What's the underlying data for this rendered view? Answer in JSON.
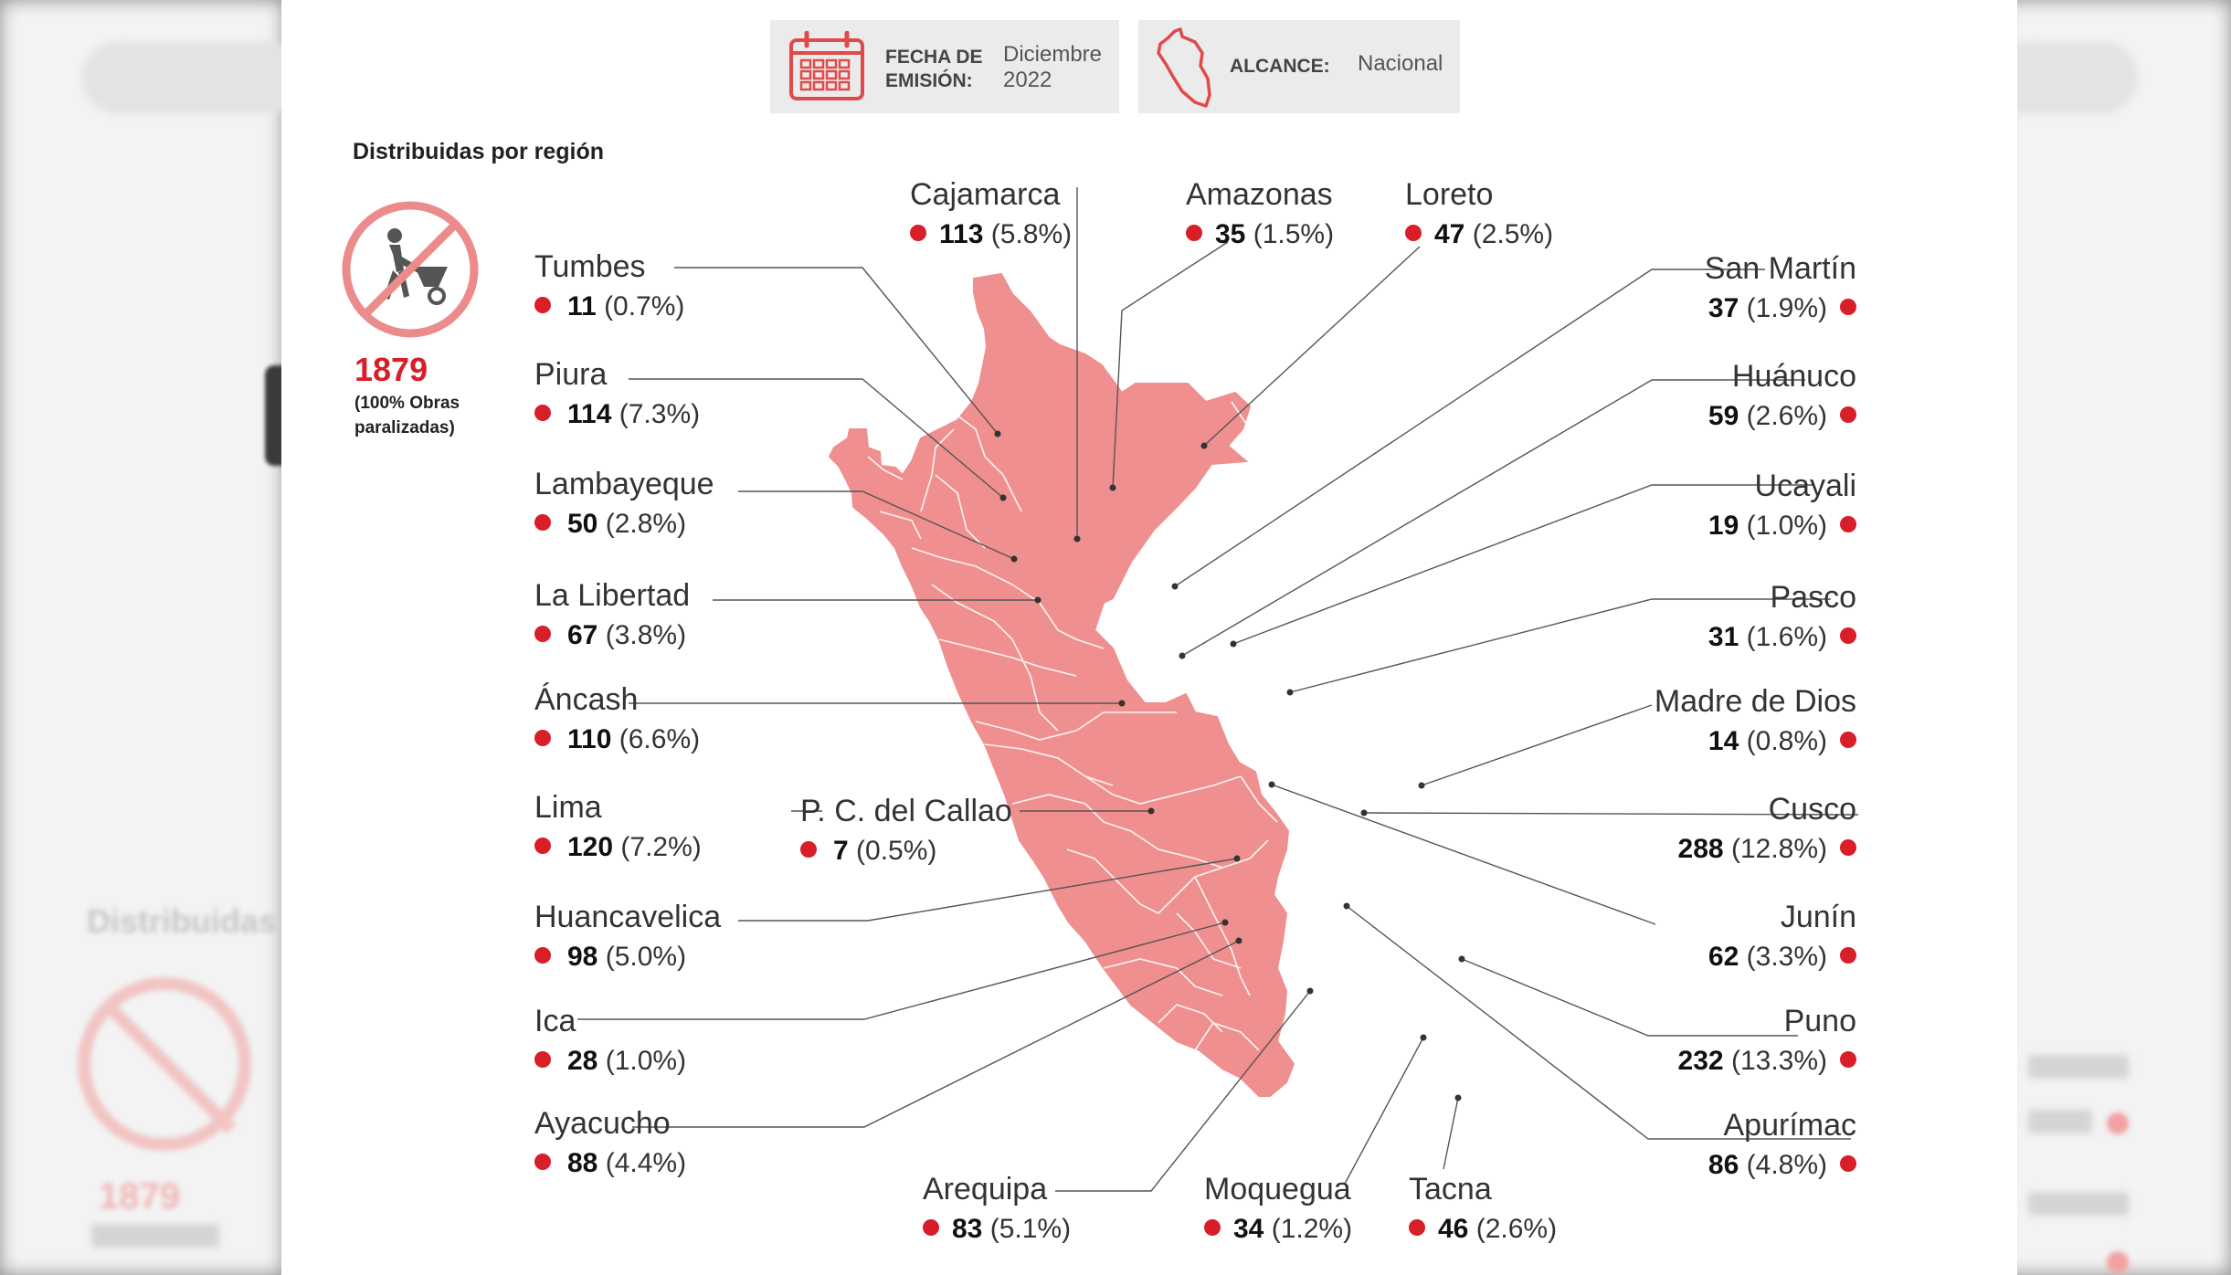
{
  "header": {
    "fecha_label": "FECHA DE EMISIÓN:",
    "fecha_value": "Diciembre 2022",
    "alcance_label": "ALCANCE:",
    "alcance_value": "Nacional"
  },
  "section_title": "Distribuidas por región",
  "total": {
    "value": "1879",
    "caption": "(100% Obras paralizadas)"
  },
  "icons": {
    "calendar": "calendar-icon",
    "peru_outline": "peru-outline-icon",
    "stopped_work": "worker-wheelbarrow-prohibited-icon"
  },
  "colors": {
    "accent": "#d81e28",
    "map_fill": "#f08f8f",
    "map_border": "#ffffff"
  },
  "regions": [
    {
      "id": "tumbes",
      "name": "Tumbes",
      "count": "11",
      "pct": "(0.7%)"
    },
    {
      "id": "piura",
      "name": "Piura",
      "count": "114",
      "pct": "(7.3%)"
    },
    {
      "id": "lambayeque",
      "name": "Lambayeque",
      "count": "50",
      "pct": "(2.8%)"
    },
    {
      "id": "lalibertad",
      "name": "La Libertad",
      "count": "67",
      "pct": "(3.8%)"
    },
    {
      "id": "ancash",
      "name": "Áncash",
      "count": "110",
      "pct": "(6.6%)"
    },
    {
      "id": "lima",
      "name": "Lima",
      "count": "120",
      "pct": "(7.2%)"
    },
    {
      "id": "callao",
      "name": "P. C. del Callao",
      "count": "7",
      "pct": "(0.5%)"
    },
    {
      "id": "huancavelica",
      "name": "Huancavelica",
      "count": "98",
      "pct": "(5.0%)"
    },
    {
      "id": "ica",
      "name": "Ica",
      "count": "28",
      "pct": "(1.0%)"
    },
    {
      "id": "ayacucho",
      "name": "Ayacucho",
      "count": "88",
      "pct": "(4.4%)"
    },
    {
      "id": "cajamarca",
      "name": "Cajamarca",
      "count": "113",
      "pct": "(5.8%)"
    },
    {
      "id": "amazonas",
      "name": "Amazonas",
      "count": "35",
      "pct": "(1.5%)"
    },
    {
      "id": "loreto",
      "name": "Loreto",
      "count": "47",
      "pct": "(2.5%)"
    },
    {
      "id": "sanmartin",
      "name": "San Martín",
      "count": "37",
      "pct": "(1.9%)"
    },
    {
      "id": "huanuco",
      "name": "Huánuco",
      "count": "59",
      "pct": "(2.6%)"
    },
    {
      "id": "ucayali",
      "name": "Ucayali",
      "count": "19",
      "pct": "(1.0%)"
    },
    {
      "id": "pasco",
      "name": "Pasco",
      "count": "31",
      "pct": "(1.6%)"
    },
    {
      "id": "madrededios",
      "name": "Madre de Dios",
      "count": "14",
      "pct": "(0.8%)"
    },
    {
      "id": "cusco",
      "name": "Cusco",
      "count": "288",
      "pct": "(12.8%)"
    },
    {
      "id": "junin",
      "name": "Junín",
      "count": "62",
      "pct": "(3.3%)"
    },
    {
      "id": "puno",
      "name": "Puno",
      "count": "232",
      "pct": "(13.3%)"
    },
    {
      "id": "apurimac",
      "name": "Apurímac",
      "count": "86",
      "pct": "(4.8%)"
    },
    {
      "id": "arequipa",
      "name": "Arequipa",
      "count": "83",
      "pct": "(5.1%)"
    },
    {
      "id": "moquegua",
      "name": "Moquegua",
      "count": "34",
      "pct": "(1.2%)"
    },
    {
      "id": "tacna",
      "name": "Tacna",
      "count": "46",
      "pct": "(2.6%)"
    }
  ]
}
